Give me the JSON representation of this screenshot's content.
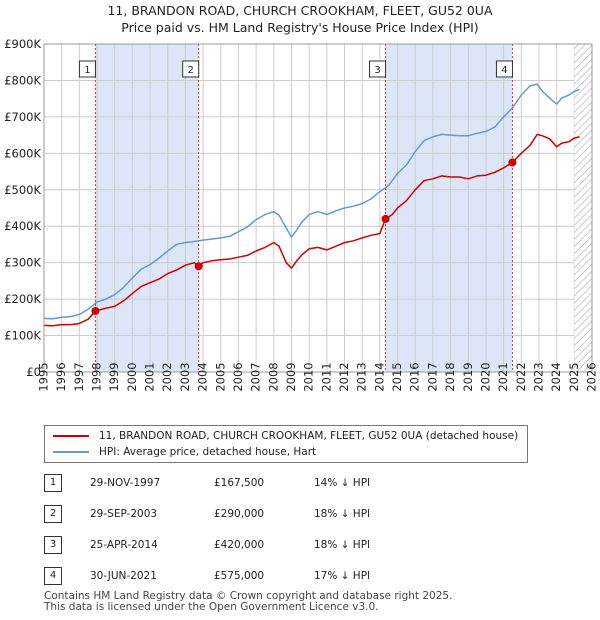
{
  "title_line1": "11, BRANDON ROAD, CHURCH CROOKHAM, FLEET, GU52 0UA",
  "title_line2": "Price paid vs. HM Land Registry's House Price Index (HPI)",
  "colors": {
    "property": "#cc0000",
    "hpi": "#6699cc",
    "shade": "#dde6f7",
    "grid": "#cccccc"
  },
  "chart_data": {
    "type": "line",
    "y_ticks": [
      "£0",
      "£100K",
      "£200K",
      "£300K",
      "£400K",
      "£500K",
      "£600K",
      "£700K",
      "£800K",
      "£900K"
    ],
    "y_tick_values": [
      0,
      100000,
      200000,
      300000,
      400000,
      500000,
      600000,
      700000,
      800000,
      900000
    ],
    "x_ticks": [
      "1995",
      "1996",
      "1997",
      "1998",
      "1999",
      "2000",
      "2001",
      "2002",
      "2003",
      "2004",
      "2005",
      "2006",
      "2007",
      "2008",
      "2009",
      "2010",
      "2011",
      "2012",
      "2013",
      "2014",
      "2015",
      "2016",
      "2017",
      "2018",
      "2019",
      "2020",
      "2021",
      "2022",
      "2023",
      "2024",
      "2025",
      "2026"
    ],
    "xlim": [
      1995,
      2026
    ],
    "ylim": [
      0,
      900000
    ],
    "shaded_ranges": [
      [
        1997.91,
        2003.75
      ],
      [
        2014.32,
        2021.5
      ]
    ],
    "hatched_from": 2025.0,
    "series": [
      {
        "name": "11, BRANDON ROAD, CHURCH CROOKHAM, FLEET, GU52 0UA (detached house)",
        "color": "#cc0000",
        "x": [
          1995.0,
          1995.5,
          1996.0,
          1996.5,
          1997.0,
          1997.5,
          1997.91,
          1998.5,
          1999.0,
          1999.5,
          2000.0,
          2000.5,
          2001.0,
          2001.5,
          2002.0,
          2002.5,
          2003.0,
          2003.5,
          2003.75,
          2004.0,
          2004.5,
          2005.0,
          2005.5,
          2006.0,
          2006.5,
          2007.0,
          2007.5,
          2008.0,
          2008.3,
          2008.7,
          2009.0,
          2009.3,
          2009.6,
          2010.0,
          2010.5,
          2011.0,
          2011.5,
          2012.0,
          2012.5,
          2013.0,
          2013.5,
          2014.0,
          2014.32,
          2014.7,
          2015.0,
          2015.5,
          2016.0,
          2016.5,
          2017.0,
          2017.5,
          2018.0,
          2018.5,
          2019.0,
          2019.5,
          2020.0,
          2020.5,
          2021.0,
          2021.5,
          2022.0,
          2022.5,
          2022.9,
          2023.2,
          2023.6,
          2024.0,
          2024.3,
          2024.7,
          2025.0,
          2025.3
        ],
        "values": [
          128000,
          127000,
          130000,
          130000,
          133000,
          145000,
          167500,
          175000,
          180000,
          195000,
          215000,
          235000,
          245000,
          255000,
          270000,
          280000,
          293000,
          300000,
          290000,
          300000,
          305000,
          308000,
          310000,
          315000,
          320000,
          332000,
          342000,
          355000,
          345000,
          300000,
          285000,
          305000,
          322000,
          338000,
          342000,
          335000,
          345000,
          355000,
          360000,
          368000,
          375000,
          380000,
          420000,
          432000,
          450000,
          470000,
          500000,
          525000,
          530000,
          538000,
          535000,
          535000,
          530000,
          538000,
          540000,
          548000,
          560000,
          575000,
          600000,
          622000,
          652000,
          648000,
          640000,
          618000,
          628000,
          632000,
          642000,
          645000
        ]
      },
      {
        "name": "HPI: Average price, detached house, Hart",
        "color": "#6699cc",
        "x": [
          1995.0,
          1995.5,
          1996.0,
          1996.5,
          1997.0,
          1997.5,
          1998.0,
          1998.5,
          1999.0,
          1999.5,
          2000.0,
          2000.5,
          2001.0,
          2001.5,
          2002.0,
          2002.5,
          2003.0,
          2003.5,
          2004.0,
          2004.5,
          2005.0,
          2005.5,
          2006.0,
          2006.5,
          2007.0,
          2007.5,
          2008.0,
          2008.3,
          2008.7,
          2009.0,
          2009.3,
          2009.6,
          2010.0,
          2010.5,
          2011.0,
          2011.5,
          2012.0,
          2012.5,
          2013.0,
          2013.5,
          2014.0,
          2014.5,
          2015.0,
          2015.5,
          2016.0,
          2016.5,
          2017.0,
          2017.5,
          2018.0,
          2018.5,
          2019.0,
          2019.5,
          2020.0,
          2020.5,
          2021.0,
          2021.5,
          2022.0,
          2022.5,
          2022.9,
          2023.2,
          2023.6,
          2024.0,
          2024.3,
          2024.7,
          2025.0,
          2025.3
        ],
        "values": [
          147000,
          146000,
          150000,
          152000,
          158000,
          172000,
          192000,
          200000,
          212000,
          232000,
          258000,
          282000,
          295000,
          312000,
          332000,
          350000,
          355000,
          358000,
          362000,
          365000,
          368000,
          372000,
          385000,
          398000,
          418000,
          432000,
          440000,
          430000,
          395000,
          370000,
          390000,
          412000,
          432000,
          440000,
          432000,
          442000,
          450000,
          455000,
          462000,
          475000,
          495000,
          512000,
          545000,
          568000,
          605000,
          635000,
          645000,
          652000,
          650000,
          648000,
          648000,
          655000,
          660000,
          672000,
          700000,
          725000,
          760000,
          785000,
          790000,
          770000,
          752000,
          735000,
          752000,
          760000,
          770000,
          775000
        ]
      }
    ],
    "sales": [
      {
        "num": "1",
        "x": 1997.91,
        "value": 167500
      },
      {
        "num": "2",
        "x": 2003.75,
        "value": 290000
      },
      {
        "num": "3",
        "x": 2014.32,
        "value": 420000
      },
      {
        "num": "4",
        "x": 2021.5,
        "value": 575000
      }
    ]
  },
  "legend": {
    "property": "11, BRANDON ROAD, CHURCH CROOKHAM, FLEET, GU52 0UA (detached house)",
    "hpi": "HPI: Average price, detached house, Hart"
  },
  "transactions": [
    {
      "num": "1",
      "date": "29-NOV-1997",
      "price": "£167,500",
      "hpi": "14% ↓ HPI"
    },
    {
      "num": "2",
      "date": "29-SEP-2003",
      "price": "£290,000",
      "hpi": "18% ↓ HPI"
    },
    {
      "num": "3",
      "date": "25-APR-2014",
      "price": "£420,000",
      "hpi": "18% ↓ HPI"
    },
    {
      "num": "4",
      "date": "30-JUN-2021",
      "price": "£575,000",
      "hpi": "17% ↓ HPI"
    }
  ],
  "footer_line1": "Contains HM Land Registry data © Crown copyright and database right 2025.",
  "footer_line2": "This data is licensed under the Open Government Licence v3.0."
}
